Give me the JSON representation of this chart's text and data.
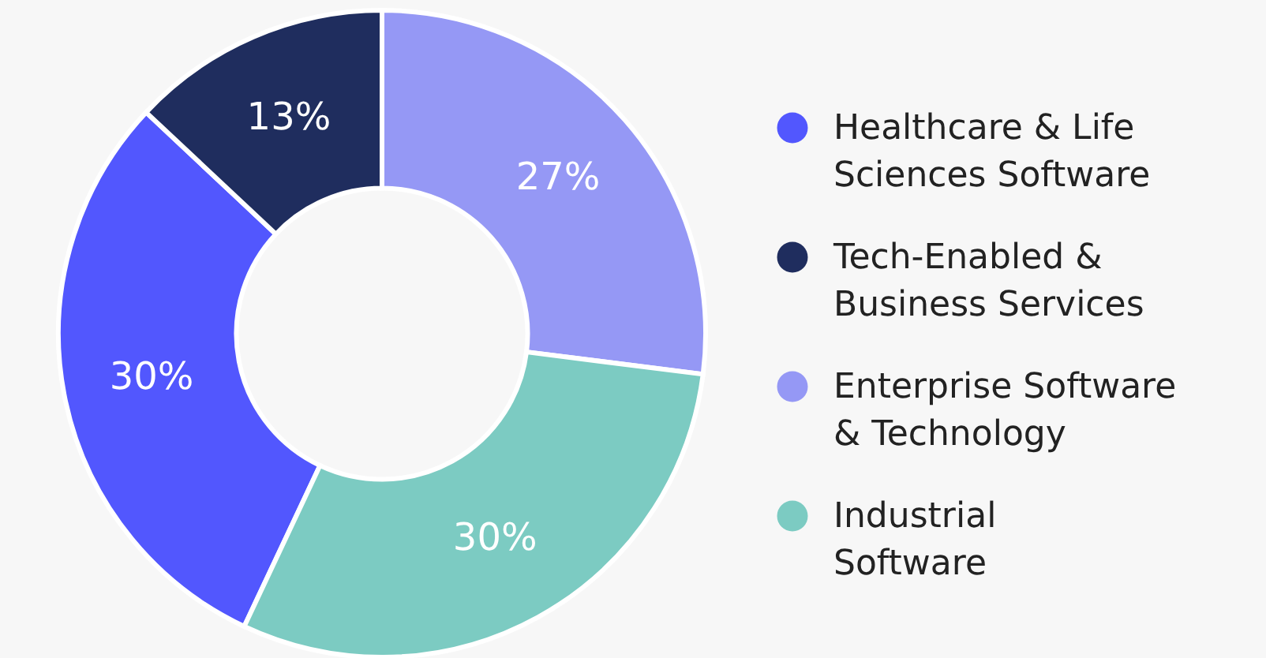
{
  "chart_data": {
    "type": "donut",
    "categories": [
      "Healthcare & Life Sciences Software",
      "Tech-Enabled & Business Services",
      "Enterprise Software & Technology",
      "Industrial Software"
    ],
    "values": [
      30,
      13,
      27,
      30
    ],
    "colors": [
      "#5257fe",
      "#1f2d5e",
      "#9598f5",
      "#7ccbc2"
    ],
    "value_labels": [
      "30%",
      "13%",
      "27%",
      "30%"
    ],
    "legend": "right"
  }
}
